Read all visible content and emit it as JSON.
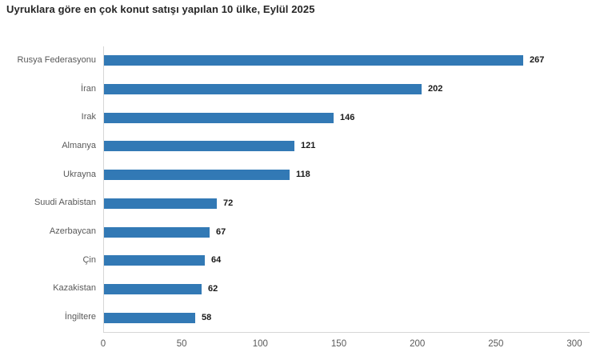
{
  "chart_data": {
    "type": "bar",
    "orientation": "horizontal",
    "title": "Uyruklara göre en çok konut satışı yapılan 10 ülke, Eylül 2025",
    "categories": [
      "Rusya Federasyonu",
      "İran",
      "Irak",
      "Almanya",
      "Ukrayna",
      "Suudi Arabistan",
      "Azerbaycan",
      "Çin",
      "Kazakistan",
      "İngiltere"
    ],
    "values": [
      267,
      202,
      146,
      121,
      118,
      72,
      67,
      64,
      62,
      58
    ],
    "xlabel": "",
    "ylabel": "",
    "xlim": [
      0,
      300
    ],
    "x_ticks": [
      0,
      50,
      100,
      150,
      200,
      250,
      300
    ],
    "grid": "off",
    "legend": "none",
    "bar_color": "#3279b5",
    "value_label_color": "#1a1a1a",
    "category_label_color": "#595959",
    "tick_label_color": "#595959",
    "axis_line_color": "#d6d6d6"
  }
}
